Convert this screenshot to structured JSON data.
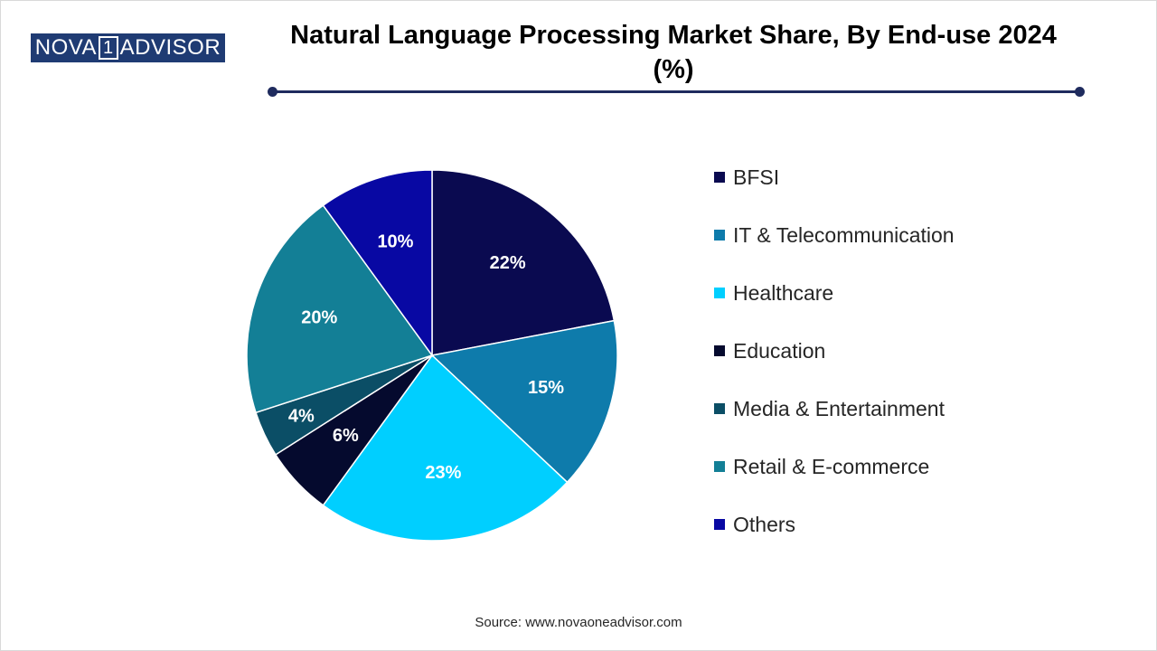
{
  "logo": {
    "part1": "NOVA",
    "part2": "1",
    "part3": "ADVISOR"
  },
  "header": {
    "title_line1": "Natural Language Processing Market Share, By End-use 2024",
    "title_line2": "(%)"
  },
  "source": "Source: www.novaoneadvisor.com",
  "chart_data": {
    "type": "pie",
    "title": "Natural Language Processing Market Share, By End-use 2024 (%)",
    "categories": [
      "BFSI",
      "IT & Telecommunication",
      "Healthcare",
      "Education",
      "Media & Entertainment",
      "Retail & E-commerce",
      "Others"
    ],
    "values": [
      22,
      15,
      23,
      6,
      4,
      20,
      10
    ],
    "labels": [
      "22%",
      "15%",
      "23%",
      "6%",
      "4%",
      "20%",
      "10%"
    ],
    "colors": [
      "#0a0a50",
      "#0e7bab",
      "#00cfff",
      "#050a2e",
      "#0b4e66",
      "#137f96",
      "#0808a3"
    ],
    "legend_position": "right"
  }
}
